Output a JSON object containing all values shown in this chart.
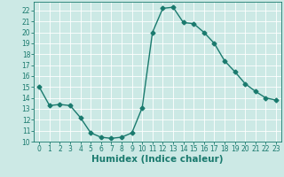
{
  "x": [
    0,
    1,
    2,
    3,
    4,
    5,
    6,
    7,
    8,
    9,
    10,
    11,
    12,
    13,
    14,
    15,
    16,
    17,
    18,
    19,
    20,
    21,
    22,
    23
  ],
  "y": [
    15,
    13.3,
    13.4,
    13.3,
    12.2,
    10.8,
    10.4,
    10.3,
    10.4,
    10.8,
    13.1,
    20.0,
    22.2,
    22.3,
    20.9,
    20.8,
    20.0,
    19.0,
    17.4,
    16.4,
    15.3,
    14.6,
    14.0,
    13.8
  ],
  "line_color": "#1a7a6e",
  "marker": "D",
  "markersize": 2.5,
  "linewidth": 1.0,
  "bg_color": "#cce9e5",
  "grid_color": "#ffffff",
  "xlabel": "Humidex (Indice chaleur)",
  "xlim": [
    -0.5,
    23.5
  ],
  "ylim": [
    10,
    22.8
  ],
  "yticks": [
    10,
    11,
    12,
    13,
    14,
    15,
    16,
    17,
    18,
    19,
    20,
    21,
    22
  ],
  "xticks": [
    0,
    1,
    2,
    3,
    4,
    5,
    6,
    7,
    8,
    9,
    10,
    11,
    12,
    13,
    14,
    15,
    16,
    17,
    18,
    19,
    20,
    21,
    22,
    23
  ],
  "tick_label_fontsize": 5.5,
  "xlabel_fontsize": 7.5
}
